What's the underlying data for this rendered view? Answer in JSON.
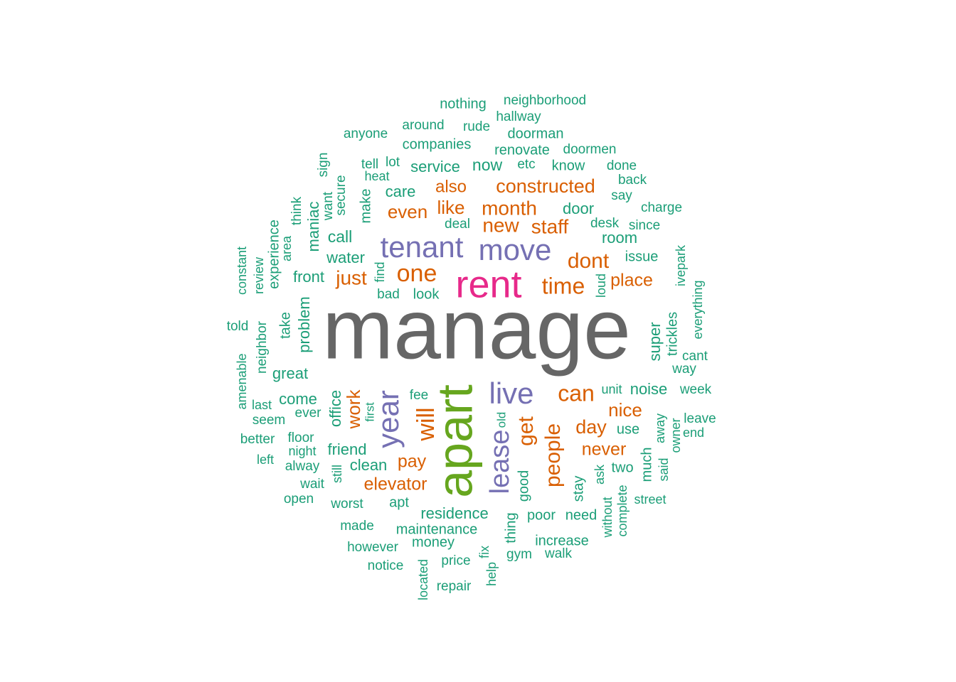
{
  "chart_data": {
    "type": "wordcloud",
    "colors": {
      "green": "#1b9e77",
      "orange": "#d95f02",
      "purple": "#7570b3",
      "pink": "#e7298a",
      "lime": "#66a61e",
      "gray": "#666666"
    },
    "words": [
      {
        "text": "manage",
        "weight": 100,
        "color": "gray"
      },
      {
        "text": "apart",
        "weight": 46,
        "color": "lime"
      },
      {
        "text": "rent",
        "weight": 38,
        "color": "pink"
      },
      {
        "text": "tenant",
        "weight": 27,
        "color": "purple"
      },
      {
        "text": "move",
        "weight": 27,
        "color": "purple"
      },
      {
        "text": "live",
        "weight": 27,
        "color": "purple"
      },
      {
        "text": "year",
        "weight": 27,
        "color": "purple"
      },
      {
        "text": "lease",
        "weight": 25,
        "color": "purple"
      },
      {
        "text": "one",
        "weight": 20,
        "color": "orange"
      },
      {
        "text": "time",
        "weight": 19,
        "color": "orange"
      },
      {
        "text": "dont",
        "weight": 18,
        "color": "orange"
      },
      {
        "text": "can",
        "weight": 18,
        "color": "orange"
      },
      {
        "text": "will",
        "weight": 18,
        "color": "orange"
      },
      {
        "text": "people",
        "weight": 17,
        "color": "orange"
      },
      {
        "text": "get",
        "weight": 17,
        "color": "orange"
      },
      {
        "text": "month",
        "weight": 16,
        "color": "orange"
      },
      {
        "text": "new",
        "weight": 16,
        "color": "orange"
      },
      {
        "text": "staff",
        "weight": 15,
        "color": "orange"
      },
      {
        "text": "constructed",
        "weight": 15,
        "color": "orange"
      },
      {
        "text": "just",
        "weight": 15,
        "color": "orange"
      },
      {
        "text": "place",
        "weight": 14,
        "color": "orange"
      },
      {
        "text": "day",
        "weight": 14,
        "color": "orange"
      },
      {
        "text": "even",
        "weight": 14,
        "color": "orange"
      },
      {
        "text": "like",
        "weight": 14,
        "color": "orange"
      },
      {
        "text": "work",
        "weight": 14,
        "color": "orange"
      },
      {
        "text": "nice",
        "weight": 14,
        "color": "orange"
      },
      {
        "text": "never",
        "weight": 14,
        "color": "orange"
      },
      {
        "text": "elevator",
        "weight": 14,
        "color": "orange"
      },
      {
        "text": "pay",
        "weight": 14,
        "color": "orange"
      },
      {
        "text": "also",
        "weight": 13,
        "color": "orange"
      },
      {
        "text": "service",
        "weight": 13,
        "color": "green"
      },
      {
        "text": "now",
        "weight": 13,
        "color": "green"
      },
      {
        "text": "care",
        "weight": 13,
        "color": "green"
      },
      {
        "text": "door",
        "weight": 13,
        "color": "green"
      },
      {
        "text": "room",
        "weight": 13,
        "color": "green"
      },
      {
        "text": "call",
        "weight": 13,
        "color": "green"
      },
      {
        "text": "water",
        "weight": 13,
        "color": "green"
      },
      {
        "text": "front",
        "weight": 13,
        "color": "green"
      },
      {
        "text": "problem",
        "weight": 13,
        "color": "green"
      },
      {
        "text": "maniac",
        "weight": 13,
        "color": "green"
      },
      {
        "text": "great",
        "weight": 13,
        "color": "green"
      },
      {
        "text": "come",
        "weight": 13,
        "color": "green"
      },
      {
        "text": "office",
        "weight": 13,
        "color": "green"
      },
      {
        "text": "friend",
        "weight": 13,
        "color": "green"
      },
      {
        "text": "clean",
        "weight": 13,
        "color": "green"
      },
      {
        "text": "residence",
        "weight": 13,
        "color": "green"
      },
      {
        "text": "maintenance",
        "weight": 12,
        "color": "green"
      },
      {
        "text": "noise",
        "weight": 13,
        "color": "green"
      },
      {
        "text": "super",
        "weight": 13,
        "color": "green"
      },
      {
        "text": "use",
        "weight": 12,
        "color": "green"
      },
      {
        "text": "two",
        "weight": 12,
        "color": "green"
      },
      {
        "text": "good",
        "weight": 12,
        "color": "green"
      },
      {
        "text": "stay",
        "weight": 12,
        "color": "green"
      },
      {
        "text": "companies",
        "weight": 12,
        "color": "green"
      },
      {
        "text": "issue",
        "weight": 12,
        "color": "green"
      },
      {
        "text": "increase",
        "weight": 12,
        "color": "green"
      },
      {
        "text": "make",
        "weight": 11,
        "color": "green"
      },
      {
        "text": "look",
        "weight": 11,
        "color": "green"
      },
      {
        "text": "money",
        "weight": 11,
        "color": "green"
      },
      {
        "text": "poor",
        "weight": 11,
        "color": "green"
      },
      {
        "text": "need",
        "weight": 11,
        "color": "green"
      },
      {
        "text": "doorman",
        "weight": 11,
        "color": "green"
      },
      {
        "text": "renovate",
        "weight": 11,
        "color": "green"
      },
      {
        "text": "know",
        "weight": 11,
        "color": "green"
      },
      {
        "text": "take",
        "weight": 11,
        "color": "green"
      },
      {
        "text": "experience",
        "weight": 11,
        "color": "green"
      },
      {
        "text": "trickles",
        "weight": 11,
        "color": "green"
      },
      {
        "text": "apt",
        "weight": 11,
        "color": "green"
      },
      {
        "text": "thing",
        "weight": 11,
        "color": "green"
      },
      {
        "text": "much",
        "weight": 11,
        "color": "green"
      },
      {
        "text": "complete",
        "weight": 11,
        "color": "green"
      },
      {
        "text": "without",
        "weight": 11,
        "color": "green"
      },
      {
        "text": "nothing",
        "weight": 10,
        "color": "green"
      },
      {
        "text": "neighborhood",
        "weight": 10,
        "color": "green"
      },
      {
        "text": "hallway",
        "weight": 10,
        "color": "green"
      },
      {
        "text": "around",
        "weight": 10,
        "color": "green"
      },
      {
        "text": "rude",
        "weight": 10,
        "color": "green"
      },
      {
        "text": "anyone",
        "weight": 10,
        "color": "green"
      },
      {
        "text": "doormen",
        "weight": 10,
        "color": "green"
      },
      {
        "text": "tell",
        "weight": 10,
        "color": "green"
      },
      {
        "text": "lot",
        "weight": 10,
        "color": "green"
      },
      {
        "text": "etc",
        "weight": 10,
        "color": "green"
      },
      {
        "text": "done",
        "weight": 10,
        "color": "green"
      },
      {
        "text": "heat",
        "weight": 10,
        "color": "green"
      },
      {
        "text": "back",
        "weight": 10,
        "color": "green"
      },
      {
        "text": "say",
        "weight": 10,
        "color": "green"
      },
      {
        "text": "sign",
        "weight": 10,
        "color": "green"
      },
      {
        "text": "secure",
        "weight": 10,
        "color": "green"
      },
      {
        "text": "want",
        "weight": 10,
        "color": "green"
      },
      {
        "text": "think",
        "weight": 10,
        "color": "green"
      },
      {
        "text": "area",
        "weight": 10,
        "color": "green"
      },
      {
        "text": "charge",
        "weight": 10,
        "color": "green"
      },
      {
        "text": "deal",
        "weight": 10,
        "color": "green"
      },
      {
        "text": "desk",
        "weight": 10,
        "color": "green"
      },
      {
        "text": "since",
        "weight": 10,
        "color": "green"
      },
      {
        "text": "constant",
        "weight": 10,
        "color": "green"
      },
      {
        "text": "review",
        "weight": 10,
        "color": "green"
      },
      {
        "text": "ivepark",
        "weight": 10,
        "color": "green"
      },
      {
        "text": "find",
        "weight": 10,
        "color": "green"
      },
      {
        "text": "bad",
        "weight": 10,
        "color": "green"
      },
      {
        "text": "loud",
        "weight": 10,
        "color": "green"
      },
      {
        "text": "everything",
        "weight": 10,
        "color": "green"
      },
      {
        "text": "told",
        "weight": 10,
        "color": "green"
      },
      {
        "text": "neighbor",
        "weight": 10,
        "color": "green"
      },
      {
        "text": "cant",
        "weight": 10,
        "color": "green"
      },
      {
        "text": "way",
        "weight": 10,
        "color": "green"
      },
      {
        "text": "amenable",
        "weight": 10,
        "color": "green"
      },
      {
        "text": "unit",
        "weight": 10,
        "color": "green"
      },
      {
        "text": "week",
        "weight": 10,
        "color": "green"
      },
      {
        "text": "fee",
        "weight": 10,
        "color": "green"
      },
      {
        "text": "last",
        "weight": 10,
        "color": "green"
      },
      {
        "text": "ever",
        "weight": 10,
        "color": "green"
      },
      {
        "text": "first",
        "weight": 10,
        "color": "green"
      },
      {
        "text": "seem",
        "weight": 10,
        "color": "green"
      },
      {
        "text": "old",
        "weight": 10,
        "color": "green"
      },
      {
        "text": "leave",
        "weight": 10,
        "color": "green"
      },
      {
        "text": "end",
        "weight": 10,
        "color": "green"
      },
      {
        "text": "away",
        "weight": 10,
        "color": "green"
      },
      {
        "text": "owner",
        "weight": 10,
        "color": "green"
      },
      {
        "text": "better",
        "weight": 10,
        "color": "green"
      },
      {
        "text": "floor",
        "weight": 10,
        "color": "green"
      },
      {
        "text": "night",
        "weight": 10,
        "color": "green"
      },
      {
        "text": "left",
        "weight": 10,
        "color": "green"
      },
      {
        "text": "alway",
        "weight": 10,
        "color": "green"
      },
      {
        "text": "still",
        "weight": 10,
        "color": "green"
      },
      {
        "text": "ask",
        "weight": 10,
        "color": "green"
      },
      {
        "text": "said",
        "weight": 10,
        "color": "green"
      },
      {
        "text": "wait",
        "weight": 10,
        "color": "green"
      },
      {
        "text": "open",
        "weight": 10,
        "color": "green"
      },
      {
        "text": "worst",
        "weight": 10,
        "color": "green"
      },
      {
        "text": "street",
        "weight": 10,
        "color": "green"
      },
      {
        "text": "made",
        "weight": 10,
        "color": "green"
      },
      {
        "text": "however",
        "weight": 10,
        "color": "green"
      },
      {
        "text": "fix",
        "weight": 10,
        "color": "green"
      },
      {
        "text": "gym",
        "weight": 10,
        "color": "green"
      },
      {
        "text": "walk",
        "weight": 10,
        "color": "green"
      },
      {
        "text": "notice",
        "weight": 10,
        "color": "green"
      },
      {
        "text": "price",
        "weight": 10,
        "color": "green"
      },
      {
        "text": "help",
        "weight": 10,
        "color": "green"
      },
      {
        "text": "located",
        "weight": 10,
        "color": "green"
      },
      {
        "text": "repair",
        "weight": 10,
        "color": "green"
      }
    ]
  }
}
